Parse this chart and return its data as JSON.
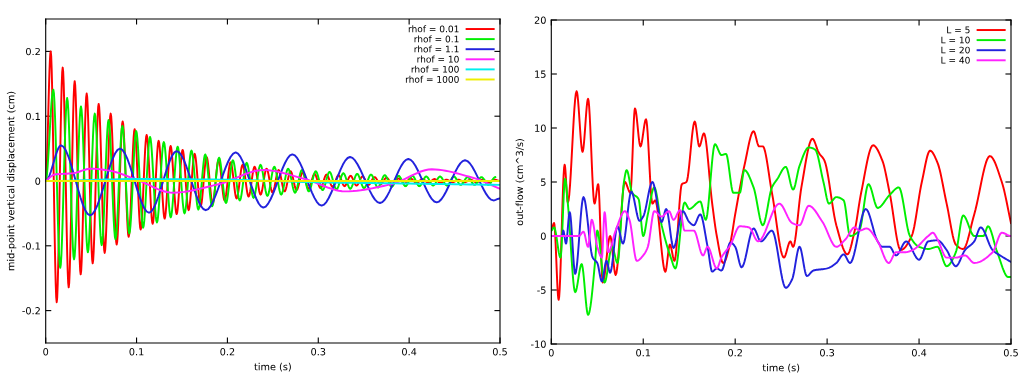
{
  "chart_data": [
    {
      "type": "line",
      "xlabel": "time (s)",
      "ylabel": "mid-point vertical displacement (cm)",
      "legend": "top right",
      "xlim": [
        0,
        0.5
      ],
      "xticks": [
        0,
        0.1,
        0.2,
        0.3,
        0.4,
        0.5
      ],
      "ylim": [
        -0.25,
        0.25
      ],
      "yticks": [
        -0.2,
        -0.1,
        0,
        0.1,
        0.2
      ],
      "series": [
        {
          "name": "rhof = 0.01",
          "color": "#ff0000",
          "x": [
            0,
            0.0055,
            0.0121,
            0.0187,
            0.0253,
            0.0319,
            0.0385,
            0.0451,
            0.0517,
            0.0583,
            0.0649,
            0.0715,
            0.0781,
            0.0847,
            0.0913,
            0.0979,
            0.1045,
            0.1111,
            0.1177,
            0.1243,
            0.1309,
            0.1375,
            0.1441,
            0.1507,
            0.1573,
            0.1639,
            0.1705,
            0.1771,
            0.1837,
            0.1903,
            0.1969,
            0.2035,
            0.2101,
            0.2167,
            0.2233,
            0.2299,
            0.2365,
            0.2431,
            0.2497,
            0.2563,
            0.2629,
            0.2695,
            0.2761,
            0.2827,
            0.2893,
            0.2959,
            0.3025,
            0.3091,
            0.3157,
            0.3223,
            0.3289,
            0.3355,
            0.3421,
            0.3487,
            0.3553,
            0.3619,
            0.3685,
            0.3751,
            0.3817,
            0.3883,
            0.3949,
            0.4015,
            0.4081,
            0.4147,
            0.4213,
            0.4279,
            0.4345,
            0.4411,
            0.4477,
            0.4543,
            0.4609,
            0.4675,
            0.4741,
            0.4807,
            0.4873,
            0.4939,
            0.5
          ],
          "values": [
            0,
            0.2,
            -0.187,
            0.175,
            -0.164,
            0.154,
            -0.144,
            0.135,
            -0.127,
            0.119,
            -0.111,
            0.104,
            -0.098,
            0.092,
            -0.086,
            0.08,
            -0.075,
            0.071,
            -0.066,
            0.062,
            -0.058,
            0.054,
            -0.051,
            0.048,
            -0.045,
            0.042,
            -0.039,
            0.037,
            -0.035,
            0.033,
            -0.03,
            0.029,
            -0.027,
            0.025,
            -0.024,
            0.022,
            -0.021,
            0.019,
            -0.018,
            0.017,
            -0.016,
            0.015,
            -0.014,
            0.013,
            -0.012,
            0.011,
            -0.011,
            0.01,
            -0.009,
            0.009,
            -0.008,
            0.008,
            -0.007,
            0.007,
            -0.006,
            0.006,
            -0.005,
            0.005,
            -0.005,
            0.004,
            -0.004,
            0.004,
            -0.003,
            0.003,
            -0.003,
            0.003,
            -0.003,
            0.002,
            -0.002,
            0.002,
            -0.002,
            0.002,
            -0.002,
            0.002,
            -0.002,
            0.002,
            0
          ]
        },
        {
          "name": "rhof = 0.1",
          "color": "#00ee00",
          "x": [
            0,
            0.0084,
            0.016,
            0.0236,
            0.0312,
            0.0388,
            0.0464,
            0.054,
            0.0616,
            0.0692,
            0.0768,
            0.0844,
            0.092,
            0.0996,
            0.1072,
            0.1148,
            0.1224,
            0.13,
            0.1376,
            0.1452,
            0.1528,
            0.1604,
            0.168,
            0.1756,
            0.1832,
            0.1908,
            0.1984,
            0.206,
            0.2136,
            0.2212,
            0.2288,
            0.2364,
            0.244,
            0.2516,
            0.2592,
            0.2668,
            0.2744,
            0.282,
            0.2896,
            0.2972,
            0.3048,
            0.3124,
            0.32,
            0.3276,
            0.3352,
            0.3428,
            0.3504,
            0.358,
            0.3656,
            0.3732,
            0.3808,
            0.3884,
            0.396,
            0.4036,
            0.4112,
            0.4188,
            0.4264,
            0.434,
            0.4416,
            0.4492,
            0.4568,
            0.4644,
            0.472,
            0.4796,
            0.4872,
            0.4948
          ],
          "values": [
            0,
            0.141,
            -0.134,
            0.128,
            -0.121,
            0.115,
            -0.11,
            0.104,
            -0.099,
            0.094,
            -0.09,
            0.085,
            -0.081,
            0.077,
            -0.072,
            0.068,
            -0.064,
            0.06,
            -0.056,
            0.053,
            -0.05,
            0.047,
            -0.044,
            0.041,
            -0.039,
            0.036,
            -0.034,
            0.032,
            -0.03,
            0.028,
            -0.026,
            0.025,
            -0.023,
            0.022,
            -0.021,
            0.019,
            -0.018,
            0.017,
            -0.016,
            0.015,
            -0.014,
            0.014,
            -0.013,
            0.012,
            -0.012,
            0.011,
            -0.011,
            0.01,
            -0.01,
            0.009,
            -0.009,
            0.008,
            -0.008,
            0.008,
            -0.008,
            0.007,
            -0.007,
            0.007,
            -0.007,
            0.007,
            -0.006,
            0.006,
            -0.006,
            0.006,
            -0.006,
            0.006
          ]
        },
        {
          "name": "rhof = 1.1",
          "color": "#2222dd",
          "x": [
            0,
            0.0169,
            0.0488,
            0.0818,
            0.1137,
            0.1442,
            0.1761,
            0.2091,
            0.2395,
            0.2715,
            0.3037,
            0.3349,
            0.3679,
            0.3991,
            0.4303,
            0.4615,
            0.4927,
            0.5
          ],
          "values": [
            0,
            0.055,
            -0.053,
            0.05,
            -0.049,
            0.046,
            -0.045,
            0.044,
            -0.041,
            0.041,
            -0.038,
            0.037,
            -0.034,
            0.034,
            -0.033,
            0.032,
            -0.03,
            -0.027
          ]
        },
        {
          "name": "rhof = 10",
          "color": "#ff22ff",
          "x": [
            0,
            0.01,
            0.03,
            0.05,
            0.07,
            0.1,
            0.14,
            0.19,
            0.24,
            0.285,
            0.33,
            0.38,
            0.425,
            0.47,
            0.5
          ],
          "values": [
            0,
            0.01,
            0.012,
            0.019,
            0.016,
            0.002,
            -0.018,
            -0.005,
            0.017,
            0.003,
            -0.016,
            -0.005,
            0.018,
            0.005,
            -0.012
          ]
        },
        {
          "name": "rhof = 100",
          "color": "#00eeee",
          "x": [
            0,
            0.1,
            0.2,
            0.3,
            0.4,
            0.5
          ],
          "values": [
            0,
            0.003,
            0.002,
            -0.002,
            -0.004,
            -0.006
          ]
        },
        {
          "name": "rhof = 1000",
          "color": "#eeee00",
          "x": [
            0,
            0.5
          ],
          "values": [
            0,
            0
          ]
        }
      ]
    },
    {
      "type": "line",
      "xlabel": "time (s)",
      "ylabel": "out-flow (cm^3/s)",
      "legend": "top right",
      "xlim": [
        0,
        0.5
      ],
      "xticks": [
        0,
        0.1,
        0.2,
        0.3,
        0.4,
        0.5
      ],
      "ylim": [
        -10,
        20
      ],
      "yticks": [
        -10,
        -5,
        0,
        5,
        10,
        15,
        20
      ],
      "series": [
        {
          "name": "L = 5",
          "color": "#ff0000",
          "x": [
            0,
            0.003,
            0.008,
            0.0145,
            0.018,
            0.0275,
            0.034,
            0.04,
            0.047,
            0.051,
            0.056,
            0.064,
            0.07,
            0.08,
            0.086,
            0.091,
            0.097,
            0.103,
            0.11,
            0.113,
            0.124,
            0.129,
            0.134,
            0.142,
            0.147,
            0.156,
            0.161,
            0.166,
            0.175,
            0.18,
            0.187,
            0.195,
            0.2,
            0.21,
            0.22,
            0.226,
            0.23,
            0.24,
            0.253,
            0.26,
            0.263,
            0.272,
            0.284,
            0.291,
            0.297,
            0.31,
            0.322,
            0.33,
            0.337,
            0.35,
            0.36,
            0.368,
            0.38,
            0.392,
            0.403,
            0.412,
            0.42,
            0.43,
            0.44,
            0.448,
            0.46,
            0.477,
            0.49,
            0.5
          ],
          "values": [
            0.6,
            1.2,
            -5.9,
            6.6,
            3.1,
            13.4,
            7.8,
            12.7,
            3.0,
            4.8,
            -4.3,
            0.0,
            -3.6,
            5.0,
            4.0,
            11.8,
            8.3,
            10.8,
            3.0,
            3.3,
            -3.3,
            -0.8,
            -2.3,
            4.8,
            5.0,
            10.6,
            8.3,
            9.5,
            3.0,
            0.0,
            -2.5,
            -0.5,
            2.0,
            6.5,
            9.7,
            8.3,
            8.3,
            4.0,
            -2.0,
            -0.5,
            -1.0,
            4.5,
            9.0,
            7.7,
            7.0,
            1.0,
            -1.7,
            0.5,
            4.0,
            8.4,
            7.0,
            4.0,
            -1.3,
            0.0,
            5.0,
            7.9,
            6.8,
            3.0,
            -0.8,
            -1.2,
            2.0,
            7.4,
            5.0,
            1.2
          ]
        },
        {
          "name": "L = 10",
          "color": "#00ee00",
          "x": [
            0,
            0.003,
            0.01,
            0.015,
            0.018,
            0.026,
            0.033,
            0.04,
            0.048,
            0.05,
            0.058,
            0.066,
            0.072,
            0.079,
            0.082,
            0.088,
            0.095,
            0.1,
            0.105,
            0.112,
            0.12,
            0.13,
            0.135,
            0.145,
            0.15,
            0.162,
            0.168,
            0.178,
            0.185,
            0.19,
            0.198,
            0.205,
            0.21,
            0.22,
            0.23,
            0.24,
            0.246,
            0.255,
            0.263,
            0.27,
            0.28,
            0.287,
            0.296,
            0.302,
            0.31,
            0.318,
            0.325,
            0.335,
            0.345,
            0.355,
            0.368,
            0.378,
            0.39,
            0.4,
            0.41,
            0.42,
            0.43,
            0.44,
            0.448,
            0.46,
            0.47,
            0.475,
            0.485,
            0.497,
            0.5
          ],
          "values": [
            0.5,
            0.8,
            -2.0,
            5.3,
            3.0,
            -5.2,
            -2.6,
            -7.3,
            -2.0,
            0.5,
            -4.3,
            -1.0,
            -2.5,
            5.0,
            6.1,
            4.0,
            3.4,
            0.0,
            2.0,
            4.5,
            1.0,
            -2.0,
            -3.0,
            3.1,
            2.5,
            3.2,
            1.5,
            8.5,
            7.5,
            7.6,
            4.0,
            4.0,
            6.1,
            4.5,
            1.0,
            4.5,
            5.3,
            6.4,
            4.3,
            6.5,
            8.2,
            8.0,
            5.0,
            3.0,
            3.6,
            3.3,
            0.0,
            0.5,
            4.8,
            2.6,
            3.8,
            4.5,
            0.0,
            -1.0,
            -1.2,
            -1.0,
            -2.8,
            -1.5,
            1.9,
            0.0,
            0.0,
            0.9,
            -1.5,
            -3.8,
            -3.8
          ]
        },
        {
          "name": "L = 20",
          "color": "#2222dd",
          "x": [
            0,
            0.012,
            0.013,
            0.016,
            0.02,
            0.026,
            0.035,
            0.045,
            0.05,
            0.055,
            0.06,
            0.064,
            0.072,
            0.078,
            0.087,
            0.096,
            0.1,
            0.11,
            0.12,
            0.125,
            0.133,
            0.143,
            0.15,
            0.155,
            0.162,
            0.17,
            0.175,
            0.18,
            0.185,
            0.195,
            0.2,
            0.207,
            0.22,
            0.228,
            0.24,
            0.255,
            0.262,
            0.27,
            0.278,
            0.285,
            0.3,
            0.31,
            0.318,
            0.325,
            0.342,
            0.355,
            0.36,
            0.368,
            0.375,
            0.386,
            0.4,
            0.41,
            0.42,
            0.43,
            0.44,
            0.45,
            0.46,
            0.467,
            0.48,
            0.49,
            0.5
          ],
          "values": [
            0.0,
            0.0,
            0.5,
            -0.7,
            2.2,
            -3.5,
            3.6,
            -2.0,
            -2.5,
            -4.2,
            -2.3,
            -3.4,
            0.9,
            -0.7,
            4.1,
            1.4,
            1.8,
            5.0,
            1.3,
            2.5,
            -1.1,
            2.3,
            1.3,
            1.0,
            2.0,
            -1.0,
            -3.3,
            -3.0,
            -3.2,
            -0.6,
            -1.0,
            -2.9,
            0.7,
            -0.5,
            0.5,
            -4.8,
            -4.0,
            -1.0,
            -3.7,
            -3.2,
            -3.0,
            -2.5,
            -1.7,
            -2.5,
            2.5,
            -0.5,
            -1.0,
            -1.0,
            -1.8,
            -0.5,
            -2.2,
            -0.5,
            -0.4,
            -1.3,
            -2.8,
            -1.3,
            -0.5,
            0.8,
            -1.3,
            -1.9,
            -2.4
          ]
        },
        {
          "name": "L = 40",
          "color": "#ff22ff",
          "x": [
            0,
            0.03,
            0.035,
            0.04,
            0.044,
            0.05,
            0.055,
            0.058,
            0.062,
            0.07,
            0.08,
            0.085,
            0.093,
            0.1,
            0.105,
            0.112,
            0.12,
            0.128,
            0.133,
            0.14,
            0.145,
            0.155,
            0.165,
            0.17,
            0.18,
            0.185,
            0.195,
            0.205,
            0.215,
            0.225,
            0.248,
            0.262,
            0.27,
            0.28,
            0.295,
            0.31,
            0.32,
            0.33,
            0.335,
            0.343,
            0.355,
            0.367,
            0.375,
            0.385,
            0.393,
            0.41,
            0.415,
            0.42,
            0.43,
            0.44,
            0.45,
            0.46,
            0.48,
            0.49,
            0.5
          ],
          "values": [
            0.0,
            0.0,
            0.4,
            -1.0,
            1.5,
            -1.0,
            -2.0,
            2.2,
            -1.5,
            0.5,
            2.3,
            1.5,
            -2.3,
            -1.8,
            -1.0,
            2.3,
            1.8,
            2.3,
            1.5,
            2.4,
            0.5,
            0.5,
            -1.8,
            -1.0,
            -3.0,
            -2.0,
            -0.8,
            0.9,
            0.8,
            -0.5,
            3.0,
            1.2,
            1.0,
            2.8,
            1.3,
            -1.0,
            -0.3,
            0.8,
            0.5,
            0.7,
            -0.5,
            -2.5,
            -1.5,
            -1.5,
            -1.3,
            0.0,
            0.3,
            -0.3,
            -2.0,
            -2.0,
            -1.8,
            -2.5,
            -1.5,
            0.3,
            0.0
          ]
        }
      ]
    }
  ]
}
